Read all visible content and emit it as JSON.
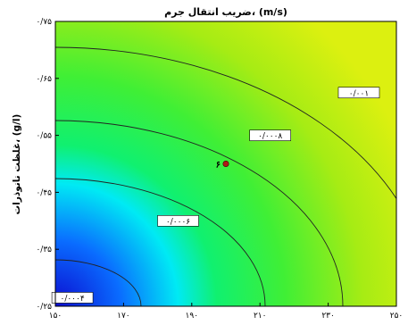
{
  "chart_data": {
    "type": "contour",
    "title": "ضریب انتقال جرم، (m/s)",
    "xlabel": "",
    "ylabel": "غلظت نانوذرات، (g/l)",
    "xlim": [
      150,
      250
    ],
    "ylim": [
      0.25,
      0.75
    ],
    "x_ticks": [
      150,
      170,
      190,
      210,
      230,
      250
    ],
    "x_tick_labels": [
      "۱۵۰",
      "۱۷۰",
      "۱۹۰",
      "۲۱۰",
      "۲۳۰",
      "۲۵۰"
    ],
    "y_ticks": [
      0.25,
      0.35,
      0.45,
      0.55,
      0.65,
      0.75
    ],
    "y_tick_labels": [
      "۰/۲۵",
      "۰/۳۵",
      "۰/۴۵",
      "۰/۵۵",
      "۰/۶۵",
      "۰/۷۵"
    ],
    "contour_levels": [
      {
        "value": 0.0004,
        "label": "۰/۰۰۰۴",
        "label_at": [
          155,
          0.265
        ]
      },
      {
        "value": 0.0006,
        "label": "۰/۰۰۰۶",
        "label_at": [
          186,
          0.4
        ]
      },
      {
        "value": 0.0008,
        "label": "۰/۰۰۰۸",
        "label_at": [
          213,
          0.55
        ]
      },
      {
        "value": 0.001,
        "label": "۰/۰۰۱",
        "label_at": [
          239,
          0.625
        ]
      }
    ],
    "design_point": {
      "x": 200,
      "y": 0.5,
      "label": "۶"
    },
    "colormap": [
      "#1010d8",
      "#0a80ff",
      "#00f0f0",
      "#10f070",
      "#40f030",
      "#a8ee10",
      "#d8f010"
    ],
    "grid": false,
    "legend": "none"
  }
}
